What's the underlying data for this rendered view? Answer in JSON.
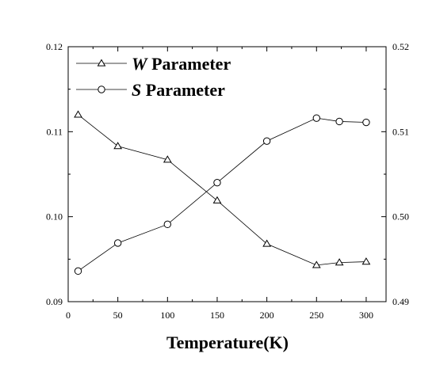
{
  "chart_data": {
    "type": "line",
    "title": "",
    "xlabel": "Temperature(K)",
    "ylabel": "",
    "y2label": "",
    "xlim": [
      0,
      320
    ],
    "xticks": [
      0,
      50,
      100,
      150,
      200,
      250,
      300
    ],
    "xtick_labels": [
      "0",
      "50",
      "100",
      "150",
      "200",
      "250",
      "300"
    ],
    "ylim": [
      0.09,
      0.12
    ],
    "yticks": [
      0.09,
      0.1,
      0.11,
      0.12
    ],
    "ytick_labels": [
      "0.09",
      "0.10",
      "0.11",
      "0.12"
    ],
    "y2lim": [
      0.49,
      0.52
    ],
    "y2ticks": [
      0.49,
      0.5,
      0.51,
      0.52
    ],
    "y2tick_labels": [
      "0.49",
      "0.50",
      "0.51",
      "0.52"
    ],
    "grid": false,
    "legend_position": "top-left",
    "series": [
      {
        "name_symbol": "W",
        "name_rest": " Parameter",
        "marker": "triangle",
        "axis": "left",
        "color": "#000000",
        "x": [
          10,
          50,
          100,
          150,
          200,
          250,
          273,
          300
        ],
        "values": [
          0.112,
          0.1083,
          0.1067,
          0.1019,
          0.0968,
          0.0943,
          0.0946,
          0.0947
        ]
      },
      {
        "name_symbol": "S",
        "name_rest": " Parameter",
        "marker": "circle",
        "axis": "right",
        "color": "#000000",
        "x": [
          10,
          50,
          100,
          150,
          200,
          250,
          273,
          300
        ],
        "values": [
          0.4936,
          0.4969,
          0.4991,
          0.504,
          0.5089,
          0.5116,
          0.5112,
          0.5111
        ]
      }
    ]
  }
}
